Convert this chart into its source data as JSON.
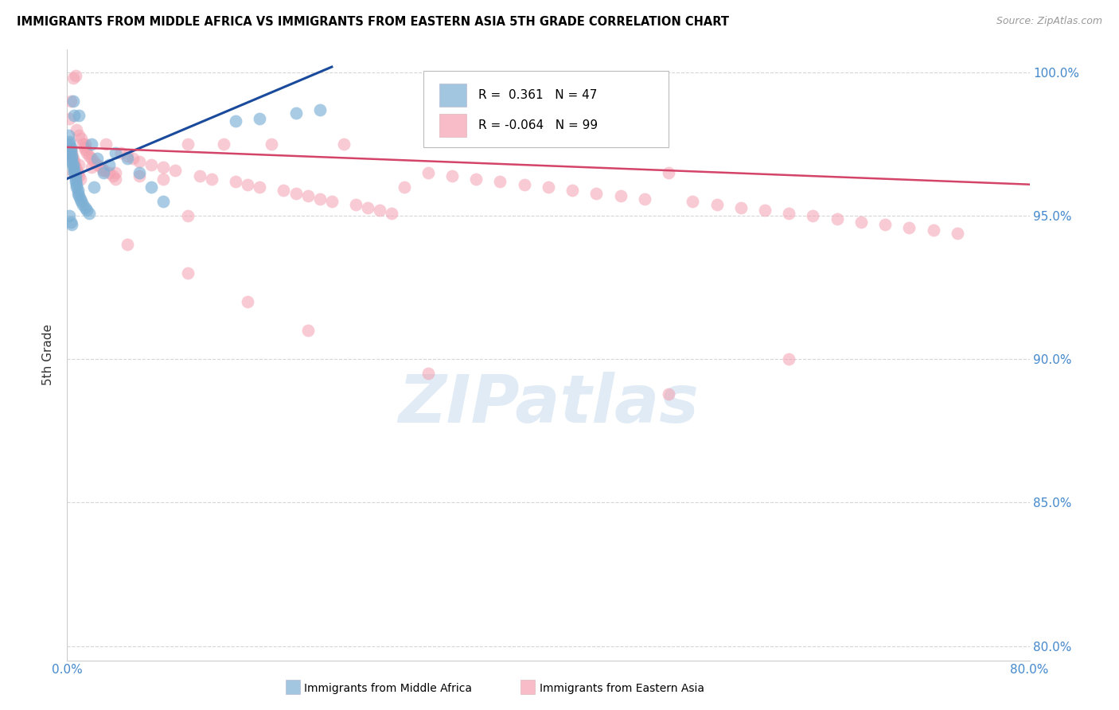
{
  "title": "IMMIGRANTS FROM MIDDLE AFRICA VS IMMIGRANTS FROM EASTERN ASIA 5TH GRADE CORRELATION CHART",
  "source": "Source: ZipAtlas.com",
  "ylabel": "5th Grade",
  "xmin": 0.0,
  "xmax": 0.8,
  "ymin": 0.795,
  "ymax": 1.008,
  "yticks": [
    0.8,
    0.85,
    0.9,
    0.95,
    1.0
  ],
  "ytick_labels": [
    "80.0%",
    "85.0%",
    "90.0%",
    "95.0%",
    "100.0%"
  ],
  "xtick_vals": [
    0.0,
    0.1,
    0.2,
    0.3,
    0.4,
    0.5,
    0.6,
    0.7,
    0.8
  ],
  "xtick_labels": [
    "0.0%",
    "",
    "",
    "",
    "",
    "",
    "",
    "",
    "80.0%"
  ],
  "blue_color": "#7BAFD4",
  "pink_color": "#F4A0B0",
  "blue_line_color": "#1A4A9B",
  "pink_line_color": "#D44468",
  "legend_R1": "0.361",
  "legend_N1": "47",
  "legend_R2": "-0.064",
  "legend_N2": "99",
  "legend_label1": "Immigrants from Middle Africa",
  "legend_label2": "Immigrants from Eastern Asia",
  "watermark": "ZIPatlas",
  "blue_x": [
    0.001,
    0.002,
    0.002,
    0.003,
    0.003,
    0.003,
    0.004,
    0.004,
    0.004,
    0.005,
    0.005,
    0.005,
    0.006,
    0.006,
    0.006,
    0.007,
    0.007,
    0.007,
    0.008,
    0.008,
    0.009,
    0.009,
    0.01,
    0.01,
    0.011,
    0.012,
    0.013,
    0.015,
    0.016,
    0.018,
    0.02,
    0.022,
    0.025,
    0.03,
    0.035,
    0.04,
    0.05,
    0.06,
    0.07,
    0.08,
    0.002,
    0.003,
    0.004,
    0.14,
    0.16,
    0.19,
    0.21
  ],
  "blue_y": [
    0.978,
    0.976,
    0.975,
    0.974,
    0.973,
    0.972,
    0.971,
    0.97,
    0.969,
    0.968,
    0.967,
    0.99,
    0.966,
    0.965,
    0.985,
    0.964,
    0.963,
    0.962,
    0.961,
    0.96,
    0.959,
    0.958,
    0.957,
    0.985,
    0.956,
    0.955,
    0.954,
    0.953,
    0.952,
    0.951,
    0.975,
    0.96,
    0.97,
    0.965,
    0.968,
    0.972,
    0.97,
    0.965,
    0.96,
    0.955,
    0.95,
    0.948,
    0.947,
    0.983,
    0.984,
    0.986,
    0.987
  ],
  "pink_x": [
    0.001,
    0.002,
    0.002,
    0.003,
    0.003,
    0.004,
    0.004,
    0.005,
    0.005,
    0.006,
    0.006,
    0.007,
    0.007,
    0.008,
    0.008,
    0.009,
    0.01,
    0.01,
    0.011,
    0.012,
    0.013,
    0.014,
    0.015,
    0.016,
    0.018,
    0.02,
    0.022,
    0.025,
    0.028,
    0.03,
    0.032,
    0.035,
    0.038,
    0.04,
    0.045,
    0.05,
    0.055,
    0.06,
    0.07,
    0.08,
    0.09,
    0.1,
    0.11,
    0.12,
    0.13,
    0.14,
    0.15,
    0.16,
    0.17,
    0.18,
    0.19,
    0.2,
    0.21,
    0.22,
    0.23,
    0.24,
    0.25,
    0.26,
    0.27,
    0.28,
    0.3,
    0.32,
    0.34,
    0.36,
    0.38,
    0.4,
    0.42,
    0.44,
    0.46,
    0.48,
    0.5,
    0.52,
    0.54,
    0.56,
    0.58,
    0.6,
    0.62,
    0.64,
    0.66,
    0.68,
    0.7,
    0.72,
    0.74,
    0.005,
    0.01,
    0.015,
    0.02,
    0.03,
    0.04,
    0.06,
    0.08,
    0.1,
    0.05,
    0.1,
    0.15,
    0.2,
    0.3,
    0.5,
    0.6
  ],
  "pink_y": [
    0.975,
    0.984,
    0.974,
    0.973,
    0.99,
    0.972,
    0.971,
    0.97,
    0.998,
    0.969,
    0.968,
    0.967,
    0.999,
    0.966,
    0.98,
    0.965,
    0.964,
    0.978,
    0.963,
    0.977,
    0.975,
    0.974,
    0.973,
    0.972,
    0.971,
    0.97,
    0.969,
    0.968,
    0.967,
    0.966,
    0.975,
    0.965,
    0.964,
    0.963,
    0.972,
    0.971,
    0.97,
    0.969,
    0.968,
    0.967,
    0.966,
    0.975,
    0.964,
    0.963,
    0.975,
    0.962,
    0.961,
    0.96,
    0.975,
    0.959,
    0.958,
    0.957,
    0.956,
    0.955,
    0.975,
    0.954,
    0.953,
    0.952,
    0.951,
    0.96,
    0.965,
    0.964,
    0.963,
    0.962,
    0.961,
    0.96,
    0.959,
    0.958,
    0.957,
    0.956,
    0.965,
    0.955,
    0.954,
    0.953,
    0.952,
    0.951,
    0.95,
    0.949,
    0.948,
    0.947,
    0.946,
    0.945,
    0.944,
    0.965,
    0.968,
    0.975,
    0.967,
    0.966,
    0.965,
    0.964,
    0.963,
    0.95,
    0.94,
    0.93,
    0.92,
    0.91,
    0.895,
    0.888,
    0.9
  ]
}
